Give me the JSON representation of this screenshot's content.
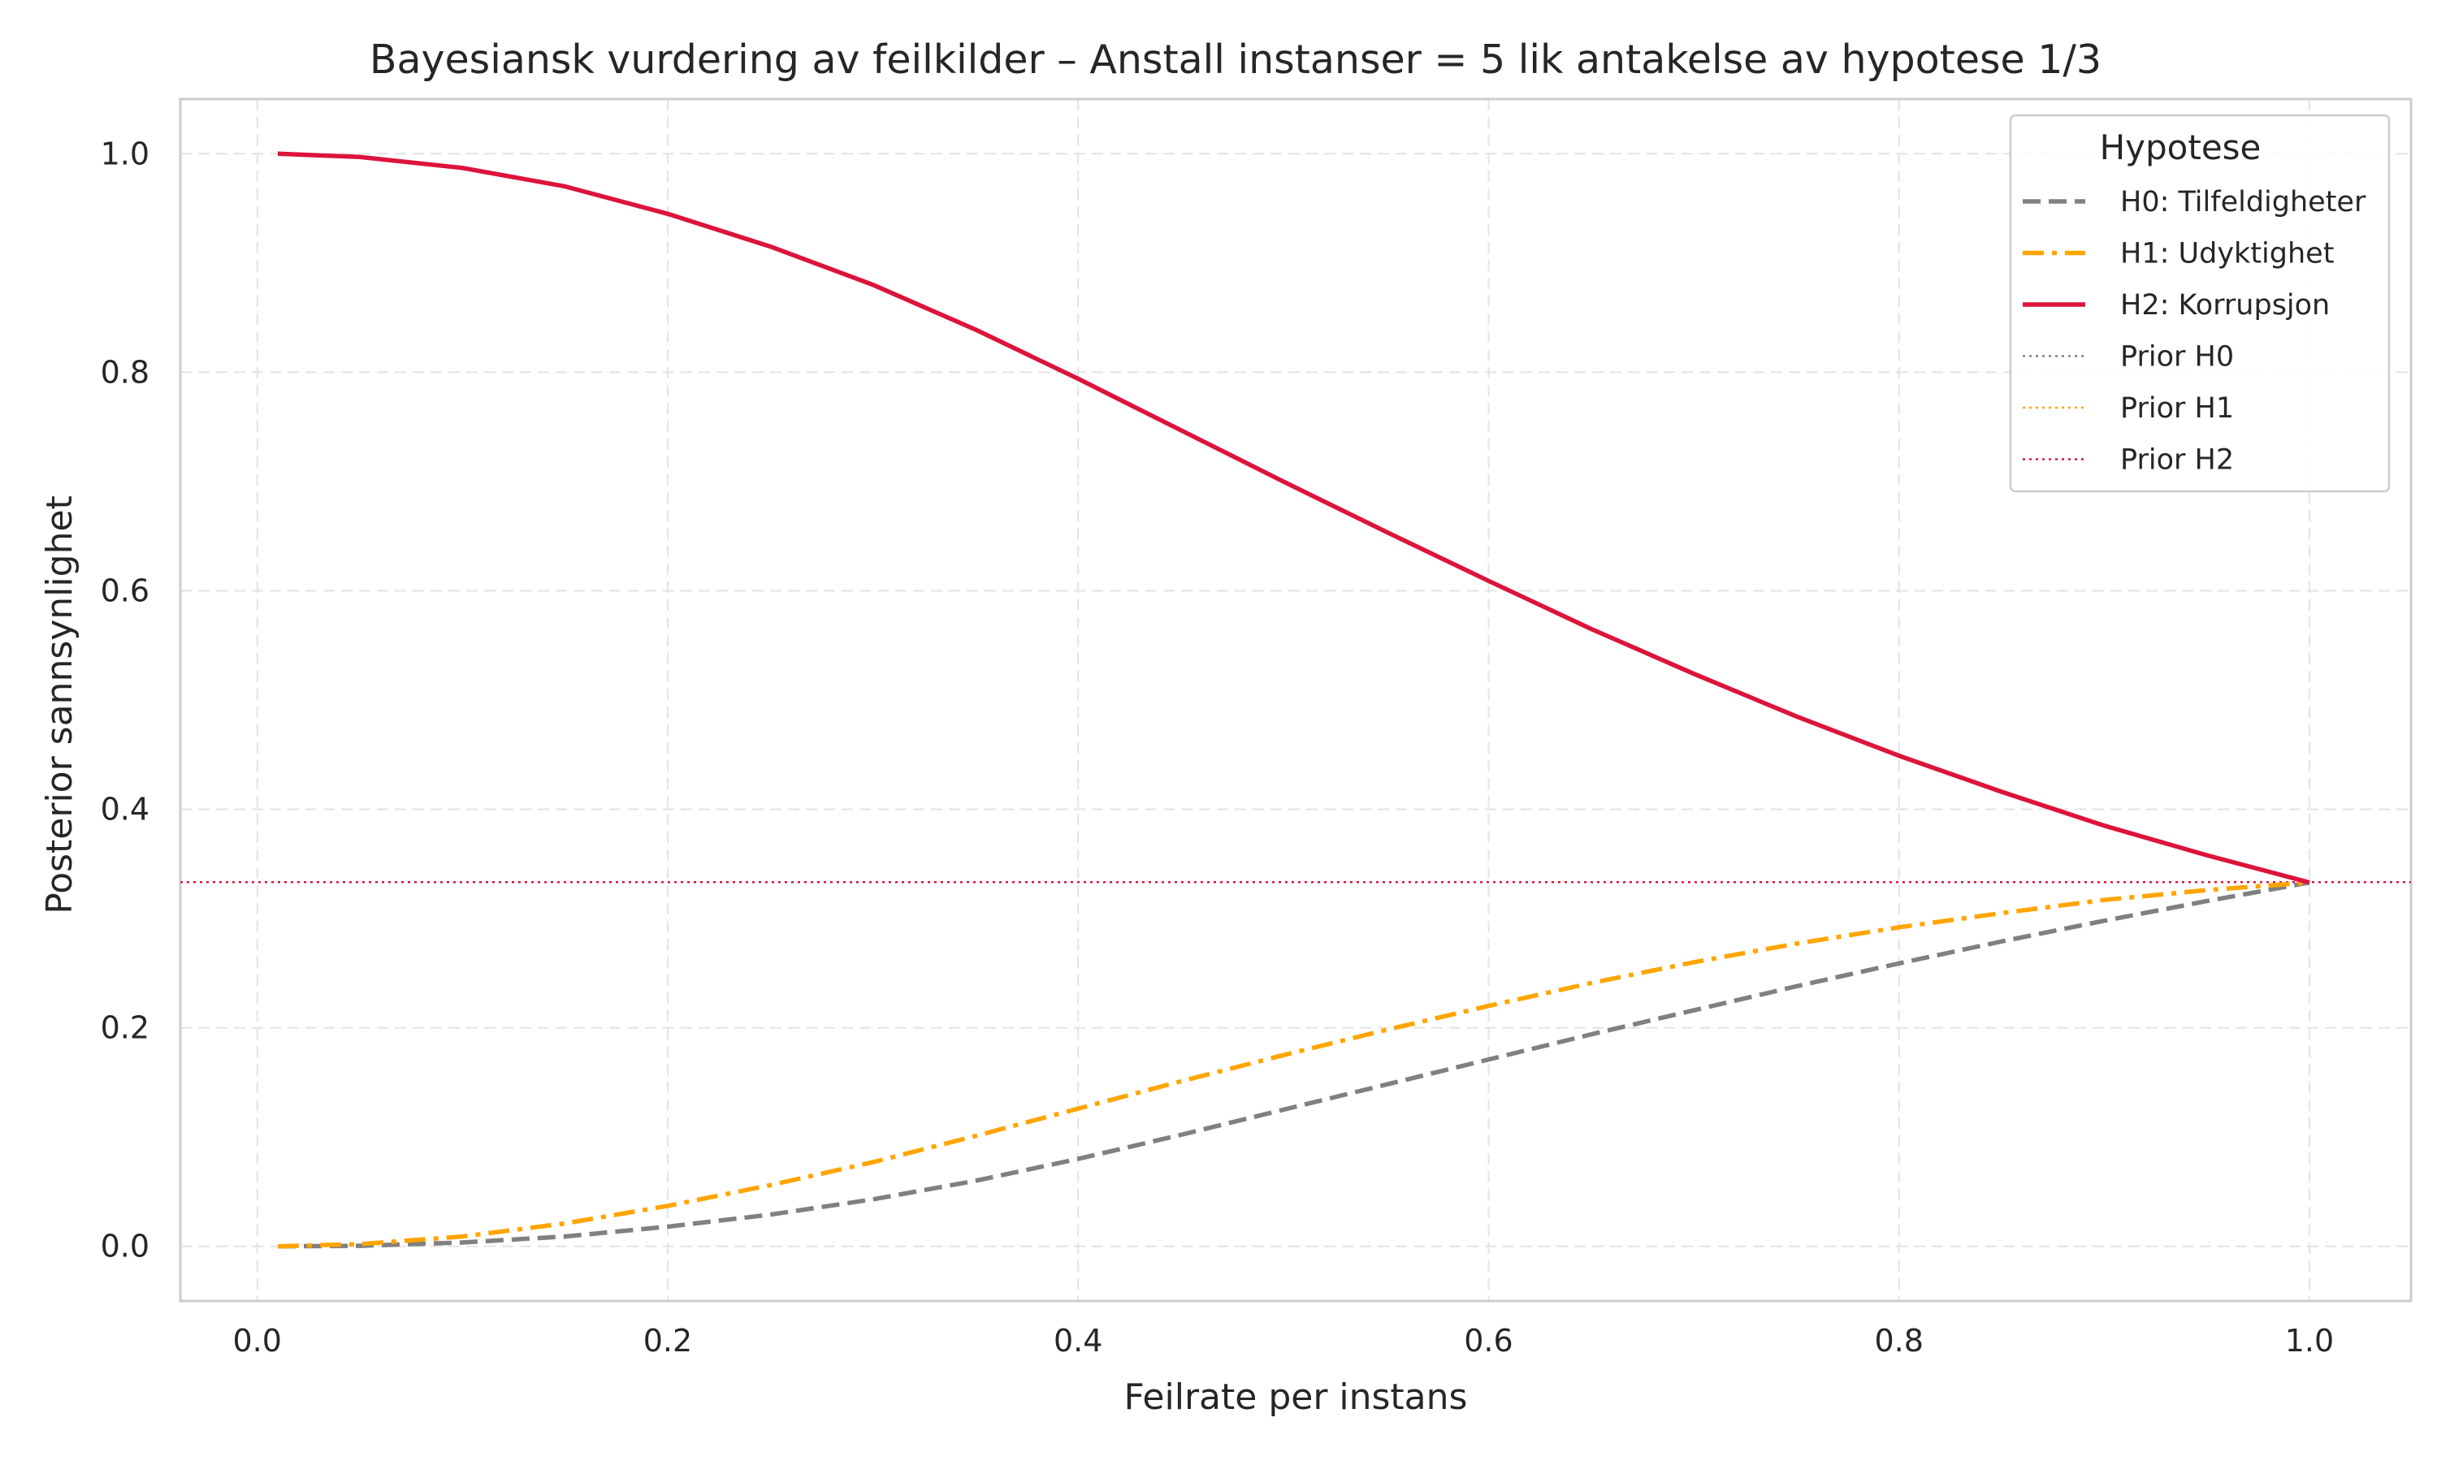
{
  "chart_data": {
    "type": "line",
    "title": "Bayesiansk vurdering av feilkilder – Anstall instanser = 5 lik antakelse av hypotese 1/3",
    "xlabel": "Feilrate per instans",
    "ylabel": "Posterior sannsynlighet",
    "xlim": [
      -0.0375,
      1.0495
    ],
    "ylim": [
      -0.05,
      1.05
    ],
    "xticks": [
      0.0,
      0.2,
      0.4,
      0.6,
      0.8,
      1.0
    ],
    "xtick_labels": [
      "0.0",
      "0.2",
      "0.4",
      "0.6",
      "0.8",
      "1.0"
    ],
    "yticks": [
      0.0,
      0.2,
      0.4,
      0.6,
      0.8,
      1.0
    ],
    "ytick_labels": [
      "0.0",
      "0.2",
      "0.4",
      "0.6",
      "0.8",
      "1.0"
    ],
    "grid": true,
    "legend": {
      "title": "Hypotese",
      "placement": "top-right"
    },
    "x": [
      0.01,
      0.05,
      0.1,
      0.15,
      0.2,
      0.25,
      0.3,
      0.35,
      0.4,
      0.45,
      0.5,
      0.55,
      0.6,
      0.65,
      0.7,
      0.75,
      0.8,
      0.85,
      0.9,
      0.95,
      1.0
    ],
    "series": [
      {
        "name": "H0: Tilfeldigheter",
        "color": "#808080",
        "style": "dashed",
        "values": [
          0.0,
          0.0005,
          0.0035,
          0.009,
          0.018,
          0.029,
          0.043,
          0.06,
          0.08,
          0.102,
          0.125,
          0.148,
          0.171,
          0.194,
          0.216,
          0.238,
          0.259,
          0.279,
          0.298,
          0.316,
          0.333
        ]
      },
      {
        "name": "H1: Udyktighet",
        "color": "#ffa500",
        "style": "dashdot",
        "values": [
          0.0,
          0.002,
          0.009,
          0.021,
          0.037,
          0.056,
          0.077,
          0.101,
          0.126,
          0.151,
          0.175,
          0.198,
          0.22,
          0.241,
          0.26,
          0.277,
          0.292,
          0.305,
          0.317,
          0.326,
          0.333
        ]
      },
      {
        "name": "H2: Korrupsjon",
        "color": "#dc143c",
        "style": "solid",
        "values": [
          1.0,
          0.997,
          0.987,
          0.97,
          0.945,
          0.915,
          0.88,
          0.839,
          0.794,
          0.747,
          0.7,
          0.654,
          0.609,
          0.565,
          0.524,
          0.485,
          0.449,
          0.416,
          0.385,
          0.358,
          0.333
        ]
      }
    ],
    "reference_lines": [
      {
        "name": "Prior H0",
        "color": "#808080",
        "style": "dotted",
        "y": 0.3333
      },
      {
        "name": "Prior H1",
        "color": "#ffa500",
        "style": "dotted",
        "y": 0.3333
      },
      {
        "name": "Prior H2",
        "color": "#dc143c",
        "style": "dotted",
        "y": 0.3333
      }
    ]
  }
}
